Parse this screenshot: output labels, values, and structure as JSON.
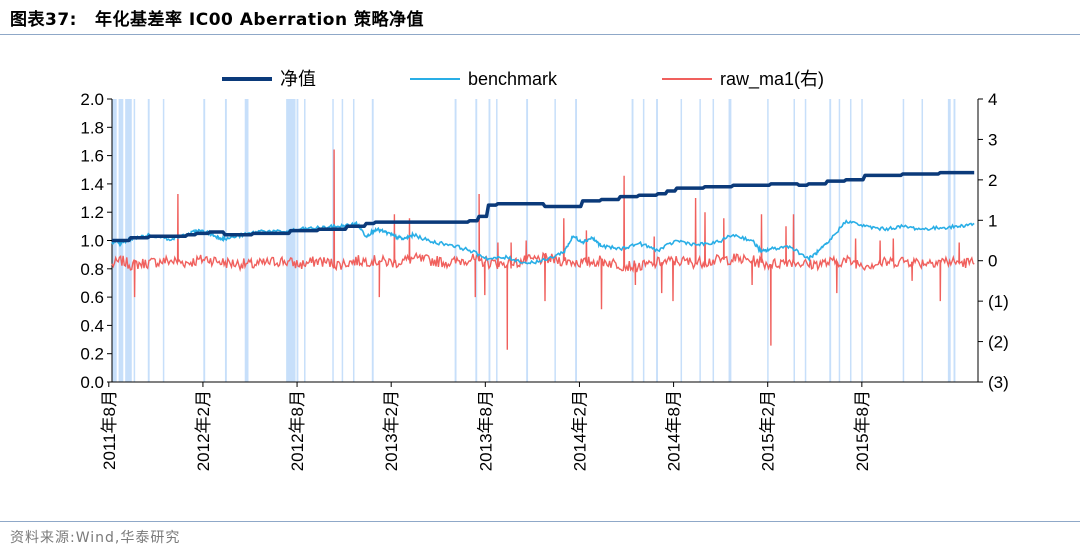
{
  "header": {
    "figure_label": "图表37:",
    "title": "年化基差率 IC00 Aberration 策略净值"
  },
  "footer": {
    "source": "资料来源:Wind,华泰研究"
  },
  "colors": {
    "nav": "#0b3a7a",
    "benchmark": "#29aee6",
    "raw_ma1": "#f0605d",
    "shade": "#c7dffa",
    "rule": "#8fa8c8"
  },
  "chart_data": {
    "type": "line",
    "title": "年化基差率 IC00 Aberration 策略净值",
    "x_range": [
      2011.6,
      2016.2
    ],
    "x_ticks": [
      {
        "x": 2011.583,
        "label": "2011年8月"
      },
      {
        "x": 2012.083,
        "label": "2012年2月"
      },
      {
        "x": 2012.583,
        "label": "2012年8月"
      },
      {
        "x": 2013.083,
        "label": "2013年2月"
      },
      {
        "x": 2013.583,
        "label": "2013年8月"
      },
      {
        "x": 2014.083,
        "label": "2014年2月"
      },
      {
        "x": 2014.583,
        "label": "2014年8月"
      },
      {
        "x": 2015.083,
        "label": "2015年2月"
      },
      {
        "x": 2015.583,
        "label": "2015年8月"
      }
    ],
    "y_left": {
      "range": [
        0,
        2.0
      ],
      "ticks": [
        "0.0",
        "0.2",
        "0.4",
        "0.6",
        "0.8",
        "1.0",
        "1.2",
        "1.4",
        "1.6",
        "1.8",
        "2.0"
      ]
    },
    "y_right": {
      "range": [
        -3,
        4
      ],
      "ticks": [
        "(3)",
        "(2)",
        "(1)",
        "0",
        "1",
        "2",
        "3",
        "4"
      ]
    },
    "legend": [
      {
        "key": "nav",
        "label": "净值"
      },
      {
        "key": "benchmark",
        "label": "benchmark"
      },
      {
        "key": "raw_ma1",
        "label": "raw_ma1(右)"
      }
    ],
    "legend_position": "top-center",
    "grid": false,
    "series": [
      {
        "name": "净值",
        "axis": "left",
        "x": [
          2011.6,
          2011.7,
          2011.8,
          2012.0,
          2012.05,
          2012.12,
          2012.2,
          2012.35,
          2012.55,
          2012.7,
          2012.85,
          2012.95,
          2013.0,
          2013.5,
          2013.55,
          2013.6,
          2013.65,
          2013.8,
          2013.9,
          2014.0,
          2014.1,
          2014.2,
          2014.3,
          2014.4,
          2014.5,
          2014.55,
          2014.6,
          2014.75,
          2014.9,
          2015.0,
          2015.1,
          2015.2,
          2015.25,
          2015.3,
          2015.4,
          2015.5,
          2015.6,
          2015.8,
          2016.0,
          2016.18
        ],
        "y": [
          1.0,
          1.02,
          1.03,
          1.04,
          1.05,
          1.06,
          1.04,
          1.05,
          1.07,
          1.08,
          1.1,
          1.12,
          1.13,
          1.14,
          1.17,
          1.25,
          1.26,
          1.26,
          1.24,
          1.24,
          1.28,
          1.29,
          1.31,
          1.32,
          1.33,
          1.35,
          1.37,
          1.38,
          1.39,
          1.39,
          1.4,
          1.4,
          1.39,
          1.4,
          1.42,
          1.43,
          1.46,
          1.47,
          1.48,
          1.48
        ]
      },
      {
        "name": "benchmark",
        "axis": "left",
        "x": [
          2011.6,
          2011.65,
          2011.7,
          2011.8,
          2011.9,
          2012.0,
          2012.05,
          2012.1,
          2012.15,
          2012.2,
          2012.3,
          2012.4,
          2012.5,
          2012.6,
          2012.7,
          2012.8,
          2012.87,
          2012.9,
          2012.95,
          2013.0,
          2013.05,
          2013.1,
          2013.15,
          2013.2,
          2013.3,
          2013.4,
          2013.5,
          2013.6,
          2013.7,
          2013.8,
          2013.9,
          2014.0,
          2014.05,
          2014.1,
          2014.15,
          2014.2,
          2014.3,
          2014.4,
          2014.5,
          2014.6,
          2014.7,
          2014.8,
          2014.9,
          2015.0,
          2015.05,
          2015.1,
          2015.2,
          2015.3,
          2015.35,
          2015.4,
          2015.5,
          2015.6,
          2015.7,
          2015.8,
          2015.9,
          2016.0,
          2016.1,
          2016.18
        ],
        "y": [
          0.99,
          0.98,
          1.01,
          1.04,
          1.01,
          1.04,
          1.07,
          1.06,
          1.03,
          1.01,
          1.04,
          1.07,
          1.06,
          1.08,
          1.09,
          1.1,
          1.11,
          1.12,
          1.03,
          1.08,
          1.06,
          1.03,
          1.01,
          1.04,
          0.99,
          0.97,
          0.93,
          0.87,
          0.88,
          0.84,
          0.86,
          0.92,
          1.03,
          0.99,
          1.02,
          0.96,
          0.94,
          0.98,
          0.93,
          1.0,
          0.97,
          0.98,
          1.04,
          1.0,
          0.92,
          0.94,
          0.96,
          0.87,
          0.92,
          0.98,
          1.14,
          1.1,
          1.08,
          1.1,
          1.08,
          1.09,
          1.1,
          1.12
        ]
      },
      {
        "name": "raw_ma1(右)",
        "axis": "right",
        "base": [
          [
            2011.6,
            -0.1
          ],
          [
            2011.65,
            0.0
          ],
          [
            2011.7,
            -0.1
          ],
          [
            2011.8,
            -0.05
          ],
          [
            2011.9,
            0.0
          ],
          [
            2012.0,
            -0.05
          ],
          [
            2012.1,
            0.05
          ],
          [
            2012.2,
            -0.05
          ],
          [
            2012.35,
            -0.1
          ],
          [
            2012.5,
            0.0
          ],
          [
            2012.6,
            -0.1
          ],
          [
            2012.7,
            0.0
          ],
          [
            2012.8,
            -0.1
          ],
          [
            2012.9,
            0.0
          ],
          [
            2013.0,
            0.0
          ],
          [
            2013.1,
            -0.05
          ],
          [
            2013.2,
            0.05
          ],
          [
            2013.3,
            0.0
          ],
          [
            2013.4,
            -0.05
          ],
          [
            2013.5,
            0.05
          ],
          [
            2013.6,
            -0.05
          ],
          [
            2013.7,
            -0.1
          ],
          [
            2013.8,
            0.0
          ],
          [
            2013.9,
            0.05
          ],
          [
            2014.0,
            0.0
          ],
          [
            2014.1,
            -0.05
          ],
          [
            2014.2,
            0.0
          ],
          [
            2014.3,
            -0.1
          ],
          [
            2014.4,
            -0.15
          ],
          [
            2014.5,
            -0.05
          ],
          [
            2014.6,
            0.0
          ],
          [
            2014.7,
            -0.05
          ],
          [
            2014.8,
            0.0
          ],
          [
            2014.9,
            0.05
          ],
          [
            2015.0,
            0.0
          ],
          [
            2015.1,
            -0.1
          ],
          [
            2015.2,
            0.0
          ],
          [
            2015.3,
            -0.1
          ],
          [
            2015.4,
            -0.05
          ],
          [
            2015.5,
            0.0
          ],
          [
            2015.6,
            -0.1
          ],
          [
            2015.7,
            -0.05
          ],
          [
            2015.8,
            0.0
          ],
          [
            2015.9,
            -0.05
          ],
          [
            2016.0,
            0.0
          ],
          [
            2016.1,
            -0.05
          ],
          [
            2016.18,
            -0.05
          ]
        ],
        "spikes": [
          [
            2011.72,
            -0.9
          ],
          [
            2011.95,
            1.65
          ],
          [
            2012.78,
            2.75
          ],
          [
            2013.02,
            -0.9
          ],
          [
            2013.1,
            1.15
          ],
          [
            2013.18,
            1.05
          ],
          [
            2013.53,
            -0.9
          ],
          [
            2013.55,
            1.65
          ],
          [
            2013.58,
            -0.85
          ],
          [
            2013.65,
            0.45
          ],
          [
            2013.7,
            -2.2
          ],
          [
            2013.72,
            0.45
          ],
          [
            2013.8,
            0.5
          ],
          [
            2013.9,
            -1.0
          ],
          [
            2014.0,
            1.05
          ],
          [
            2014.12,
            0.75
          ],
          [
            2014.2,
            -1.2
          ],
          [
            2014.32,
            2.1
          ],
          [
            2014.38,
            -0.6
          ],
          [
            2014.48,
            0.6
          ],
          [
            2014.52,
            -0.8
          ],
          [
            2014.58,
            -1.0
          ],
          [
            2014.7,
            1.55
          ],
          [
            2014.75,
            1.2
          ],
          [
            2014.85,
            1.05
          ],
          [
            2015.0,
            -0.6
          ],
          [
            2015.05,
            1.15
          ],
          [
            2015.1,
            -2.1
          ],
          [
            2015.18,
            0.85
          ],
          [
            2015.22,
            1.15
          ],
          [
            2015.45,
            -0.8
          ],
          [
            2015.55,
            0.55
          ],
          [
            2015.68,
            0.5
          ],
          [
            2015.75,
            0.55
          ],
          [
            2015.85,
            -0.5
          ],
          [
            2016.0,
            -1.0
          ],
          [
            2016.1,
            0.45
          ]
        ]
      }
    ],
    "shaded_regions": [
      [
        2011.6,
        2011.625
      ],
      [
        2011.635,
        2011.66
      ],
      [
        2011.67,
        2011.705
      ],
      [
        2011.715,
        2011.72
      ],
      [
        2011.79,
        2011.8
      ],
      [
        2011.87,
        2011.875
      ],
      [
        2012.085,
        2012.095
      ],
      [
        2012.2,
        2012.21
      ],
      [
        2012.305,
        2012.325
      ],
      [
        2012.525,
        2012.575
      ],
      [
        2012.58,
        2012.59
      ],
      [
        2012.62,
        2012.625
      ],
      [
        2012.77,
        2012.775
      ],
      [
        2012.82,
        2012.825
      ],
      [
        2012.88,
        2012.885
      ],
      [
        2012.98,
        2012.99
      ],
      [
        2013.42,
        2013.43
      ],
      [
        2013.53,
        2013.54
      ],
      [
        2013.6,
        2013.61
      ],
      [
        2013.64,
        2013.645
      ],
      [
        2013.8,
        2013.81
      ],
      [
        2013.95,
        2013.955
      ],
      [
        2014.06,
        2014.07
      ],
      [
        2014.36,
        2014.37
      ],
      [
        2014.42,
        2014.425
      ],
      [
        2014.49,
        2014.5
      ],
      [
        2014.62,
        2014.625
      ],
      [
        2014.72,
        2014.725
      ],
      [
        2014.79,
        2014.795
      ],
      [
        2014.875,
        2014.89
      ],
      [
        2015.08,
        2015.085
      ],
      [
        2015.22,
        2015.225
      ],
      [
        2015.28,
        2015.285
      ],
      [
        2015.41,
        2015.42
      ],
      [
        2015.46,
        2015.465
      ],
      [
        2015.52,
        2015.525
      ],
      [
        2015.58,
        2015.585
      ],
      [
        2015.8,
        2015.805
      ],
      [
        2015.9,
        2015.905
      ],
      [
        2016.04,
        2016.055
      ],
      [
        2016.07,
        2016.08
      ]
    ]
  }
}
